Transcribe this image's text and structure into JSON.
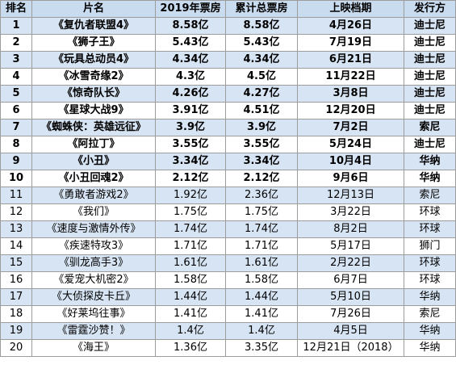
{
  "header": {
    "rank": "排名",
    "title": "片名",
    "box2019": "2019年票房",
    "total": "累计总票房",
    "release": "上映档期",
    "distributor": "发行方"
  },
  "rows": [
    {
      "rank": "1",
      "title": "《复仇者联盟4》",
      "box2019": "8.58亿",
      "total": "8.58亿",
      "release": "4月26日",
      "distributor": "迪士尼"
    },
    {
      "rank": "2",
      "title": "《狮子王》",
      "box2019": "5.43亿",
      "total": "5.43亿",
      "release": "7月19日",
      "distributor": "迪士尼"
    },
    {
      "rank": "3",
      "title": "《玩具总动员4》",
      "box2019": "4.34亿",
      "total": "4.34亿",
      "release": "6月21日",
      "distributor": "迪士尼"
    },
    {
      "rank": "4",
      "title": "《冰雪奇缘2》",
      "box2019": "4.3亿",
      "total": "4.5亿",
      "release": "11月22日",
      "distributor": "迪士尼"
    },
    {
      "rank": "5",
      "title": "《惊奇队长》",
      "box2019": "4.26亿",
      "total": "4.27亿",
      "release": "3月8日",
      "distributor": "迪士尼"
    },
    {
      "rank": "6",
      "title": "《星球大战9》",
      "box2019": "3.91亿",
      "total": "4.51亿",
      "release": "12月20日",
      "distributor": "迪士尼"
    },
    {
      "rank": "7",
      "title": "《蜘蛛侠：英雄远征》",
      "box2019": "3.9亿",
      "total": "3.9亿",
      "release": "7月2日",
      "distributor": "索尼"
    },
    {
      "rank": "8",
      "title": "《阿拉丁》",
      "box2019": "3.55亿",
      "total": "3.55亿",
      "release": "5月24日",
      "distributor": "迪士尼"
    },
    {
      "rank": "9",
      "title": "《小丑》",
      "box2019": "3.34亿",
      "total": "3.34亿",
      "release": "10月4日",
      "distributor": "华纳"
    },
    {
      "rank": "10",
      "title": "《小丑回魂2》",
      "box2019": "2.12亿",
      "total": "2.12亿",
      "release": "9月6日",
      "distributor": "华纳"
    },
    {
      "rank": "11",
      "title": "《勇敢者游戏2》",
      "box2019": "1.92亿",
      "total": "2.36亿",
      "release": "12月13日",
      "distributor": "索尼"
    },
    {
      "rank": "12",
      "title": "《我们》",
      "box2019": "1.75亿",
      "total": "1.75亿",
      "release": "3月22日",
      "distributor": "环球"
    },
    {
      "rank": "13",
      "title": "《速度与激情外传》",
      "box2019": "1.74亿",
      "total": "1.74亿",
      "release": "8月2日",
      "distributor": "环球"
    },
    {
      "rank": "14",
      "title": "《疾速特攻3》",
      "box2019": "1.71亿",
      "total": "1.71亿",
      "release": "5月17日",
      "distributor": "狮门"
    },
    {
      "rank": "15",
      "title": "《驯龙高手3》",
      "box2019": "1.61亿",
      "total": "1.61亿",
      "release": "2月22日",
      "distributor": "环球"
    },
    {
      "rank": "16",
      "title": "《爱宠大机密2》",
      "box2019": "1.58亿",
      "total": "1.58亿",
      "release": "6月7日",
      "distributor": "环球"
    },
    {
      "rank": "17",
      "title": "《大侦探皮卡丘》",
      "box2019": "1.44亿",
      "total": "1.44亿",
      "release": "5月10日",
      "distributor": "华纳"
    },
    {
      "rank": "18",
      "title": "《好莱坞往事》",
      "box2019": "1.41亿",
      "total": "1.41亿",
      "release": "7月26日",
      "distributor": "索尼"
    },
    {
      "rank": "19",
      "title": "《雷霆沙赞！》",
      "box2019": "1.4亿",
      "total": "1.4亿",
      "release": "4月5日",
      "distributor": "华纳"
    },
    {
      "rank": "20",
      "title": "《海王》",
      "box2019": "1.36亿",
      "total": "3.35亿",
      "release": "12月21日（2018）",
      "distributor": "华纳"
    }
  ]
}
